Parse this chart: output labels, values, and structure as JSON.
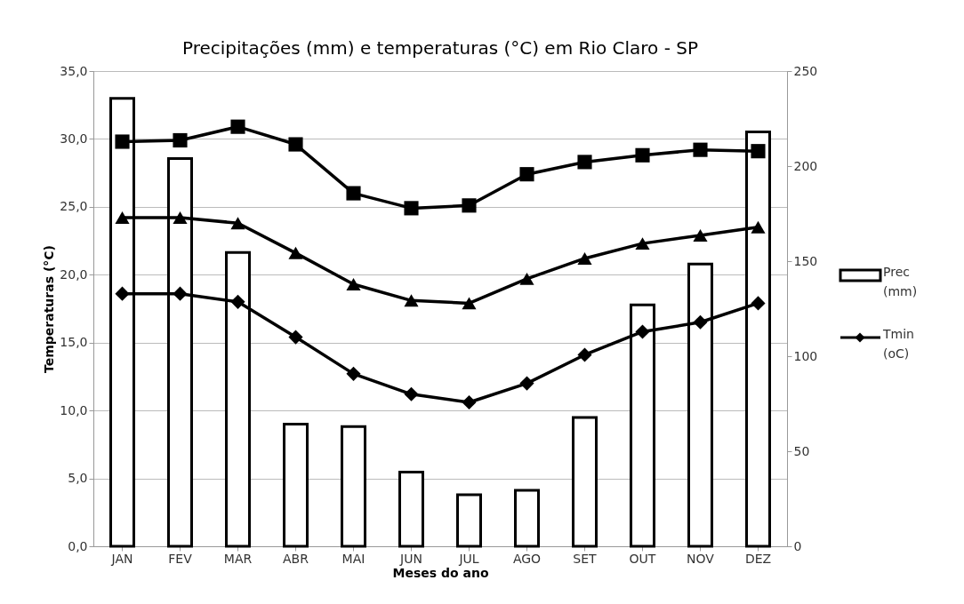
{
  "chart_data": {
    "type": "line",
    "title": "Precipitações (mm) e temperaturas (°C) em Rio Claro - SP",
    "xlabel": "Meses do ano",
    "ylabel": "Temperaturas (°C)",
    "categories": [
      "JAN",
      "FEV",
      "MAR",
      "ABR",
      "MAI",
      "JUN",
      "JUL",
      "AGO",
      "SET",
      "OUT",
      "NOV",
      "DEZ"
    ],
    "series": [
      {
        "name": "Prec (mm)",
        "type": "bar",
        "axis": "y2",
        "color": "#ffffff",
        "values": [
          235.6,
          204,
          154.5,
          64.3,
          63,
          39,
          27.1,
          29.4,
          67.7,
          127,
          148.5,
          218
        ]
      },
      {
        "color": "#000000",
        "marker": "square",
        "values": [
          29.8,
          29.9,
          30.9,
          29.6,
          26.0,
          24.9,
          25.1,
          27.4,
          28.3,
          28.8,
          29.2,
          29.1
        ]
      },
      {
        "color": "#000000",
        "marker": "triangle",
        "values": [
          24.2,
          24.2,
          23.8,
          21.6,
          19.3,
          18.1,
          17.9,
          19.7,
          21.2,
          22.3,
          22.9,
          23.5
        ]
      },
      {
        "name": "Tmin (oC)",
        "color": "#000000",
        "marker": "diamond",
        "values": [
          18.6,
          18.6,
          18.0,
          15.4,
          12.7,
          11.2,
          10.6,
          12.0,
          14.1,
          15.8,
          16.5,
          17.9
        ]
      }
    ],
    "ylim": [
      0,
      35
    ],
    "yticks": [
      {
        "value": 0,
        "label": "0,0"
      },
      {
        "value": 5,
        "label": "5,0"
      },
      {
        "value": 10,
        "label": "10,0"
      },
      {
        "value": 15,
        "label": "15,0"
      },
      {
        "value": 20,
        "label": "20,0"
      },
      {
        "value": 25,
        "label": "25,0"
      },
      {
        "value": 30,
        "label": "30,0"
      },
      {
        "value": 35,
        "label": "35,0"
      }
    ],
    "y2lim": [
      0,
      250
    ],
    "y2ticks": [
      0,
      50,
      100,
      150,
      200,
      250
    ],
    "grid": "y",
    "legend": "right"
  }
}
